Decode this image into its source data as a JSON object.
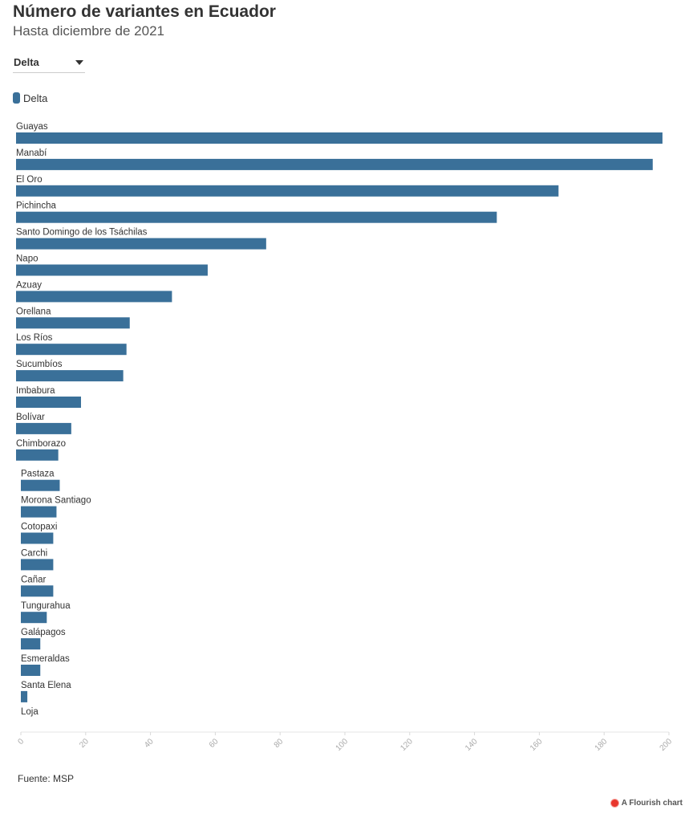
{
  "header": {
    "title": "Número de variantes en Ecuador",
    "subtitle": "Hasta diciembre de 2021"
  },
  "filter": {
    "selected": "Delta"
  },
  "colors": {
    "bar": "#3a7099"
  },
  "chart_data": {
    "type": "bar",
    "orientation": "horizontal",
    "title": "Número de variantes en Ecuador",
    "subtitle": "Hasta diciembre de 2021",
    "xlabel": "",
    "ylabel": "",
    "xlim": [
      0,
      200
    ],
    "xticks": [
      0,
      20,
      40,
      60,
      80,
      100,
      120,
      140,
      160,
      180,
      200
    ],
    "grid": false,
    "legend": "top-left",
    "categories": [
      "Guayas",
      "Manabí",
      "El Oro",
      "Pichincha",
      "Santo Domingo de los Tsáchilas",
      "Napo",
      "Azuay",
      "Orellana",
      "Los Ríos",
      "Sucumbíos",
      "Imbabura",
      "Bolívar",
      "Chimborazo",
      "Pastaza",
      "Morona Santiago",
      "Cotopaxi",
      "Carchi",
      "Cañar",
      "Tungurahua",
      "Galápagos",
      "Esmeraldas",
      "Santa Elena",
      "Loja"
    ],
    "series": [
      {
        "name": "Delta",
        "values": [
          199,
          196,
          167,
          148,
          77,
          59,
          48,
          35,
          34,
          33,
          20,
          17,
          13,
          12,
          11,
          10,
          10,
          10,
          8,
          6,
          6,
          2,
          0
        ]
      }
    ]
  },
  "source": "Fuente: MSP",
  "credit": "A Flourish chart"
}
